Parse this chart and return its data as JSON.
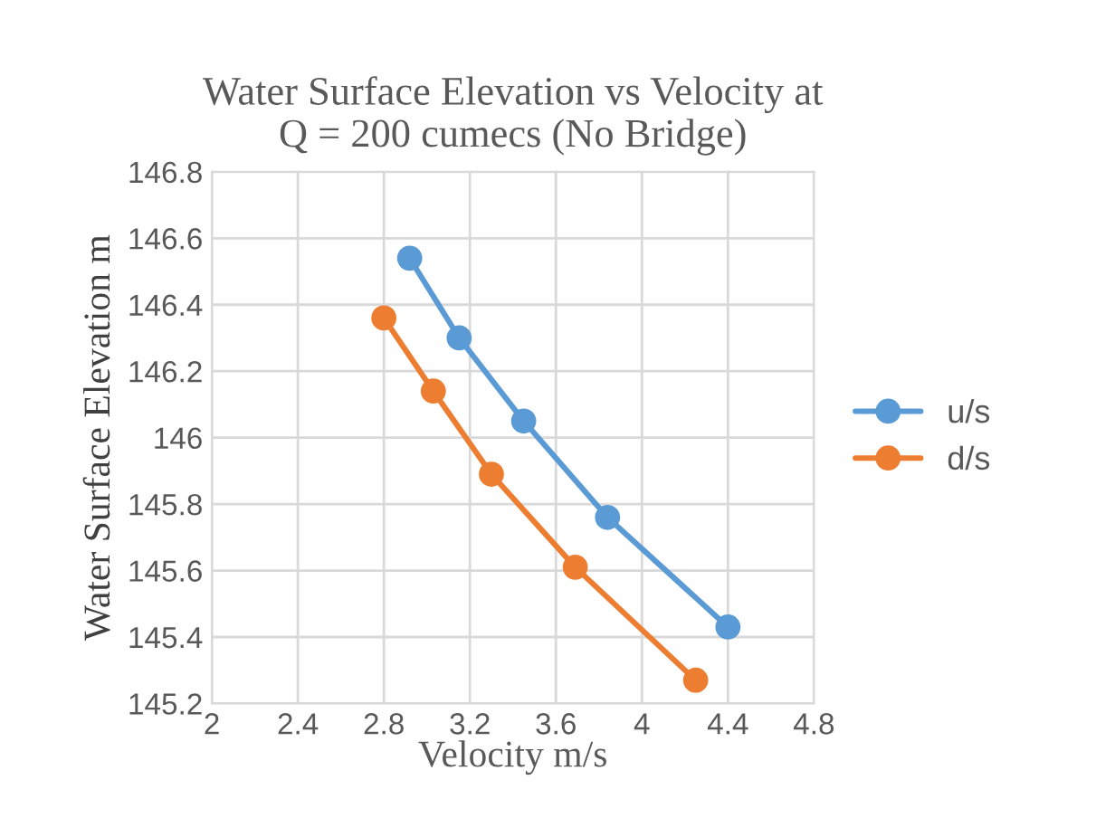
{
  "chart_data": {
    "type": "line",
    "title": "Water Surface Elevation vs Velocity at\nQ = 200 cumecs (No Bridge)",
    "xlabel": "Velocity m/s",
    "ylabel": "Water Surface Elevation m",
    "series": [
      {
        "name": "u/s",
        "color": "#5b9bd5",
        "x": [
          2.92,
          3.15,
          3.45,
          3.84,
          4.4
        ],
        "values": [
          146.54,
          146.3,
          146.05,
          145.76,
          145.43
        ]
      },
      {
        "name": "d/s",
        "color": "#ed7d31",
        "x": [
          2.8,
          3.03,
          3.3,
          3.69,
          4.25
        ],
        "values": [
          146.36,
          146.14,
          145.89,
          145.61,
          145.27
        ]
      }
    ],
    "xlim": [
      2,
      4.8
    ],
    "xticks": [
      2,
      2.4,
      2.8,
      3.2,
      3.6,
      4,
      4.4,
      4.8
    ],
    "ylim": [
      145.2,
      146.8
    ],
    "yticks": [
      145.2,
      145.4,
      145.6,
      145.8,
      146,
      146.2,
      146.4,
      146.6,
      146.8
    ],
    "grid": true,
    "legend": "right",
    "marker": "circle",
    "line_style": "solid"
  }
}
